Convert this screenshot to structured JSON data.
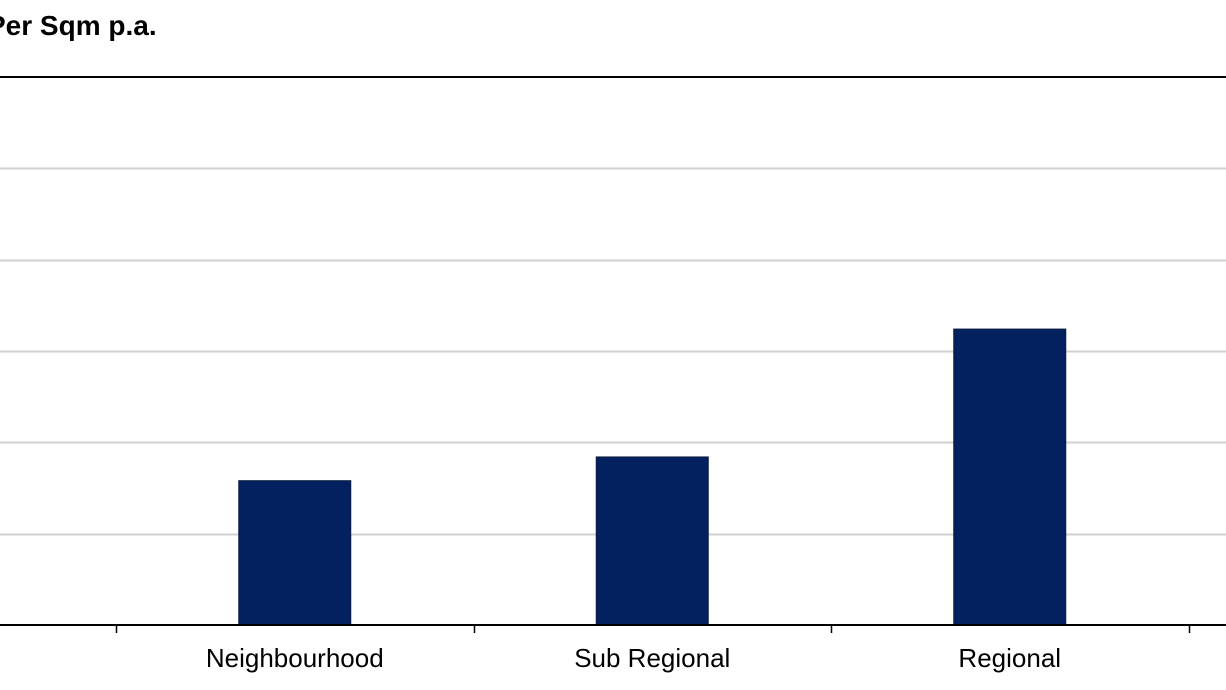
{
  "chart_data": {
    "type": "bar",
    "title": "Per Sqm p.a.",
    "categories": [
      "Neighbourhood",
      "Sub Regional",
      "Regional"
    ],
    "values": [
      1.58,
      1.84,
      3.24
    ],
    "ylim": [
      0,
      6
    ],
    "grid": true,
    "colors": {
      "bar": "#03215e",
      "grid": "#d0d0d0",
      "axis": "#000000"
    }
  }
}
